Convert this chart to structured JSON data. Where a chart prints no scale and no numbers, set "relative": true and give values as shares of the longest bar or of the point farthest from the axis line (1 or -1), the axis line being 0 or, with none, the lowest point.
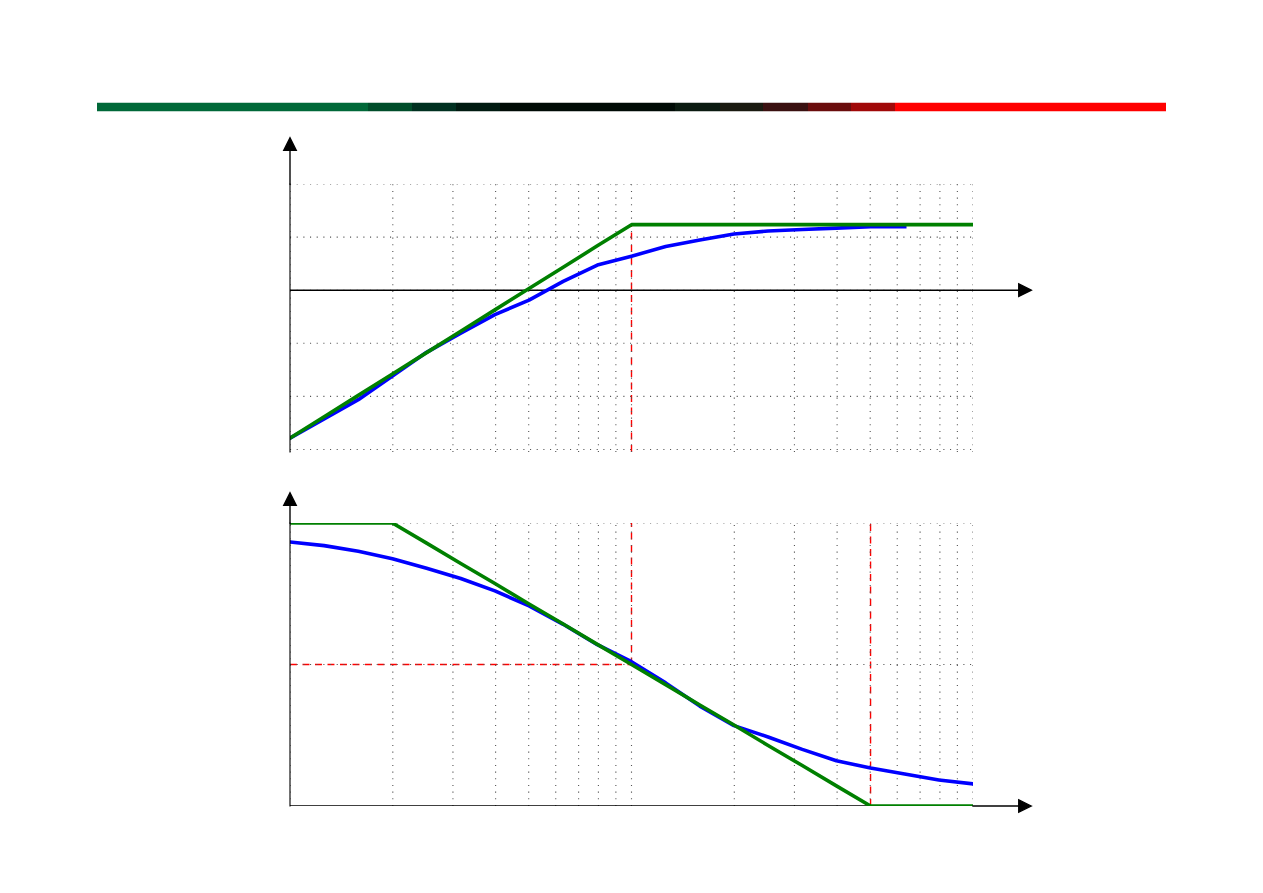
{
  "chart_data": [
    {
      "type": "line",
      "relative": true,
      "grid": true,
      "line_style": "solid",
      "categories": [
        null,
        null,
        null,
        null,
        null,
        null,
        null,
        null,
        null,
        null,
        null,
        null,
        null,
        null,
        null,
        null,
        null,
        null,
        null,
        null,
        null
      ],
      "series": [
        {
          "color": "#0000ff",
          "values": [
            -1.0,
            -0.87,
            -0.74,
            -0.58,
            -0.42,
            -0.29,
            -0.165,
            -0.067,
            0.06,
            0.17,
            0.23,
            0.295,
            0.34,
            0.38,
            0.4,
            0.41,
            0.42,
            0.43,
            0.43,
            null,
            null
          ]
        },
        {
          "color": "#008000",
          "values": [
            -1.0,
            -0.856,
            -0.711,
            -0.567,
            -0.422,
            -0.278,
            -0.133,
            0.011,
            0.155,
            0.3,
            0.443,
            0.443,
            0.443,
            0.443,
            0.443,
            0.443,
            0.443,
            0.443,
            0.443,
            0.443,
            0.443
          ]
        }
      ]
    },
    {
      "type": "line",
      "relative": true,
      "grid": true,
      "line_style": "solid",
      "categories": [
        null,
        null,
        null,
        null,
        null,
        null,
        null,
        null,
        null,
        null,
        null,
        null,
        null,
        null,
        null,
        null,
        null,
        null,
        null,
        null,
        null
      ],
      "series": [
        {
          "color": "#0000ff",
          "values": [
            0.933,
            0.92,
            0.9,
            0.874,
            0.84,
            0.804,
            0.76,
            0.707,
            0.642,
            0.57,
            0.51,
            0.435,
            0.353,
            0.284,
            0.244,
            0.2,
            0.16,
            0.134,
            0.113,
            0.092,
            0.078
          ]
        },
        {
          "color": "#008000",
          "values": [
            1,
            1,
            1,
            1,
            0.929,
            0.857,
            0.786,
            0.714,
            0.643,
            0.571,
            0.5,
            0.429,
            0.357,
            0.286,
            0.214,
            0.143,
            0.071,
            0,
            0,
            0,
            0
          ]
        }
      ],
      "ref_lines": [
        {
          "axis": "y",
          "value": 0.5,
          "color": "#ff0000",
          "line_style": "dashed"
        }
      ]
    }
  ]
}
